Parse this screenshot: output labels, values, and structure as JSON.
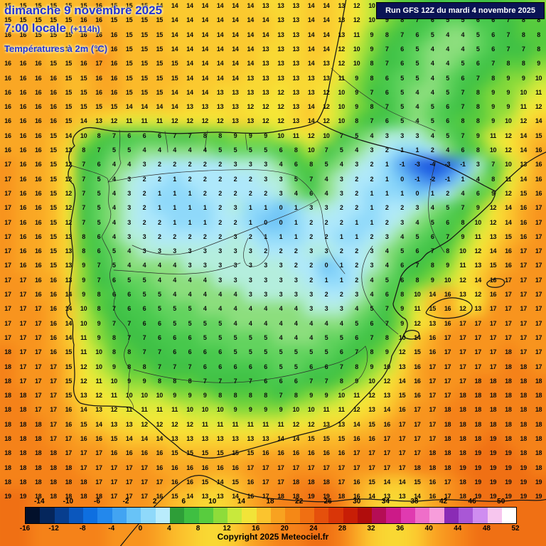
{
  "header": {
    "date_line": "dimanche 9 novembre 2025",
    "time_line": "7:00 locale",
    "offset_label": "(+114h)",
    "param_line": "Températures à 2m (°C)",
    "run_info": "Run GFS 12Z du mardi 4 novembre 2025"
  },
  "footer": {
    "copyright": "Copyright 2025 Meteociel.fr"
  },
  "colors": {
    "map_background": "#f5a623",
    "header_text": "#2333d6",
    "run_box_bg": "#0a1355",
    "run_box_text": "#ffffff",
    "number_text": "#0d0d0d"
  },
  "colorbar": {
    "top_labels": [
      "-14",
      "-10",
      "-6",
      "-2",
      "2",
      "6",
      "10",
      "14",
      "18",
      "22",
      "26",
      "30",
      "34",
      "38",
      "42",
      "46",
      "50"
    ],
    "bottom_labels": [
      "-16",
      "-12",
      "-8",
      "-4",
      "0",
      "4",
      "8",
      "12",
      "16",
      "20",
      "24",
      "28",
      "32",
      "36",
      "40",
      "44",
      "48",
      "52"
    ],
    "segment_colors": [
      "#02102b",
      "#05265c",
      "#083e8e",
      "#0b57bd",
      "#0e6fe0",
      "#2388ec",
      "#42a4f2",
      "#68c3f7",
      "#8fd9fa",
      "#b9ecfc",
      "#2e9e38",
      "#3fbf42",
      "#58cc3e",
      "#8edc3a",
      "#c8e93c",
      "#f2e438",
      "#fbc42e",
      "#f8a220",
      "#f58816",
      "#f06f12",
      "#e5500c",
      "#d93608",
      "#c81e06",
      "#b00d0c",
      "#b50d55",
      "#cc1a88",
      "#e03ab0",
      "#ef6ec9",
      "#f79ddb",
      "#8a2bb5",
      "#a957d6",
      "#cf8df0",
      "#f7c6ee",
      "#ffffff"
    ]
  },
  "chart_data": {
    "type": "heatmap",
    "title": "Températures à 2m (°C)",
    "unit": "°C",
    "model_run": "Run GFS 12Z du mardi 4 novembre 2025",
    "valid_time": "dimanche 9 novembre 2025 7:00 locale (+114h)",
    "grid_rows": 35,
    "grid_cols": 36,
    "palette_stops": [
      [
        -16,
        "#02102b"
      ],
      [
        -10,
        "#083e8e"
      ],
      [
        -6,
        "#0a36b4"
      ],
      [
        -4,
        "#0d47dd"
      ],
      [
        -2,
        "#2f76e8"
      ],
      [
        -1,
        "#4f9ef0"
      ],
      [
        0,
        "#6fc4f6"
      ],
      [
        1,
        "#8fd9fa"
      ],
      [
        2,
        "#aee8fb"
      ],
      [
        3,
        "#b4eedd"
      ],
      [
        4,
        "#8cde7d"
      ],
      [
        5,
        "#62d35e"
      ],
      [
        6,
        "#47c84c"
      ],
      [
        7,
        "#3ec045"
      ],
      [
        8,
        "#56cb3e"
      ],
      [
        9,
        "#86d93a"
      ],
      [
        10,
        "#c0e83c"
      ],
      [
        11,
        "#e6ea3a"
      ],
      [
        12,
        "#f6e636"
      ],
      [
        13,
        "#f9d833"
      ],
      [
        14,
        "#fbc92f"
      ],
      [
        15,
        "#fbba2a"
      ],
      [
        16,
        "#faa724"
      ],
      [
        17,
        "#f8941e"
      ],
      [
        18,
        "#f58219"
      ],
      [
        19,
        "#f07014"
      ],
      [
        20,
        "#ea5e10"
      ]
    ],
    "values": [
      [
        15,
        15,
        15,
        15,
        15,
        15,
        16,
        15,
        15,
        15,
        14,
        14,
        14,
        14,
        14,
        14,
        14,
        13,
        13,
        13,
        14,
        14,
        13,
        12,
        10,
        9,
        8,
        8,
        7,
        6,
        6,
        7,
        7,
        8,
        8,
        9
      ],
      [
        15,
        15,
        15,
        15,
        15,
        16,
        16,
        15,
        15,
        15,
        15,
        14,
        14,
        14,
        14,
        14,
        14,
        14,
        13,
        13,
        14,
        14,
        13,
        12,
        10,
        9,
        8,
        7,
        6,
        5,
        5,
        6,
        6,
        7,
        8,
        8
      ],
      [
        16,
        16,
        15,
        15,
        15,
        16,
        16,
        16,
        15,
        15,
        15,
        14,
        14,
        14,
        14,
        14,
        14,
        14,
        13,
        13,
        14,
        14,
        13,
        11,
        9,
        8,
        7,
        6,
        5,
        4,
        4,
        5,
        6,
        7,
        8,
        8
      ],
      [
        16,
        16,
        16,
        15,
        15,
        16,
        17,
        16,
        15,
        15,
        15,
        14,
        14,
        14,
        14,
        14,
        14,
        13,
        13,
        13,
        14,
        14,
        12,
        10,
        9,
        7,
        6,
        5,
        4,
        4,
        4,
        5,
        6,
        7,
        7,
        8
      ],
      [
        16,
        16,
        16,
        15,
        15,
        16,
        17,
        16,
        15,
        15,
        15,
        15,
        14,
        14,
        14,
        14,
        14,
        13,
        13,
        13,
        14,
        13,
        12,
        10,
        8,
        7,
        6,
        5,
        4,
        4,
        5,
        6,
        7,
        8,
        8,
        9
      ],
      [
        16,
        16,
        16,
        16,
        15,
        15,
        16,
        16,
        15,
        15,
        15,
        15,
        14,
        14,
        14,
        14,
        13,
        13,
        13,
        13,
        13,
        13,
        11,
        9,
        8,
        6,
        5,
        5,
        4,
        5,
        6,
        7,
        8,
        9,
        9,
        10
      ],
      [
        16,
        16,
        16,
        16,
        15,
        15,
        16,
        16,
        15,
        15,
        15,
        14,
        14,
        14,
        13,
        13,
        13,
        13,
        12,
        13,
        13,
        12,
        10,
        9,
        7,
        6,
        5,
        4,
        4,
        5,
        7,
        8,
        9,
        9,
        10,
        11
      ],
      [
        16,
        16,
        16,
        16,
        15,
        15,
        15,
        15,
        14,
        14,
        14,
        14,
        13,
        13,
        13,
        13,
        12,
        12,
        12,
        13,
        14,
        12,
        10,
        9,
        8,
        7,
        5,
        4,
        5,
        6,
        7,
        8,
        9,
        9,
        11,
        12
      ],
      [
        16,
        16,
        16,
        16,
        15,
        14,
        13,
        12,
        11,
        11,
        11,
        12,
        12,
        12,
        12,
        13,
        13,
        12,
        12,
        13,
        14,
        12,
        10,
        8,
        7,
        6,
        5,
        4,
        5,
        6,
        8,
        8,
        9,
        10,
        12,
        14
      ],
      [
        16,
        16,
        16,
        15,
        14,
        10,
        8,
        7,
        6,
        6,
        6,
        7,
        7,
        8,
        8,
        9,
        9,
        9,
        10,
        11,
        12,
        10,
        7,
        5,
        4,
        3,
        3,
        3,
        4,
        5,
        7,
        9,
        11,
        12,
        14,
        15
      ],
      [
        16,
        16,
        16,
        15,
        13,
        8,
        7,
        5,
        5,
        4,
        4,
        4,
        4,
        4,
        5,
        5,
        5,
        5,
        6,
        8,
        10,
        7,
        5,
        4,
        3,
        2,
        1,
        1,
        2,
        4,
        6,
        8,
        10,
        12,
        14,
        16
      ],
      [
        17,
        16,
        16,
        15,
        12,
        7,
        6,
        4,
        4,
        3,
        2,
        2,
        2,
        2,
        2,
        3,
        3,
        3,
        4,
        6,
        8,
        5,
        4,
        3,
        2,
        1,
        -1,
        -3,
        -4,
        -3,
        -1,
        3,
        7,
        10,
        13,
        16
      ],
      [
        17,
        16,
        16,
        15,
        12,
        7,
        5,
        4,
        3,
        2,
        2,
        1,
        2,
        2,
        2,
        2,
        2,
        3,
        3,
        5,
        7,
        4,
        3,
        2,
        2,
        1,
        0,
        -1,
        -2,
        -1,
        1,
        4,
        8,
        11,
        14,
        16
      ],
      [
        17,
        16,
        16,
        15,
        12,
        7,
        5,
        4,
        3,
        2,
        1,
        1,
        1,
        2,
        2,
        2,
        2,
        2,
        3,
        4,
        6,
        4,
        3,
        2,
        1,
        1,
        1,
        0,
        1,
        2,
        4,
        6,
        9,
        12,
        15,
        16
      ],
      [
        17,
        16,
        16,
        15,
        12,
        7,
        5,
        4,
        3,
        2,
        1,
        1,
        1,
        1,
        2,
        3,
        1,
        1,
        0,
        1,
        3,
        3,
        2,
        2,
        1,
        2,
        2,
        3,
        4,
        5,
        7,
        9,
        12,
        14,
        16,
        17
      ],
      [
        17,
        16,
        16,
        15,
        12,
        7,
        5,
        4,
        3,
        2,
        2,
        1,
        1,
        1,
        2,
        2,
        1,
        0,
        0,
        1,
        2,
        2,
        2,
        1,
        1,
        2,
        3,
        4,
        5,
        6,
        8,
        10,
        12,
        14,
        16,
        17
      ],
      [
        17,
        16,
        16,
        15,
        13,
        8,
        6,
        4,
        3,
        3,
        2,
        2,
        2,
        2,
        2,
        3,
        2,
        1,
        1,
        1,
        2,
        2,
        1,
        1,
        2,
        3,
        4,
        5,
        6,
        7,
        9,
        11,
        13,
        15,
        16,
        17
      ],
      [
        17,
        16,
        16,
        15,
        13,
        8,
        6,
        5,
        4,
        3,
        3,
        3,
        3,
        3,
        3,
        3,
        3,
        2,
        2,
        2,
        3,
        3,
        2,
        2,
        3,
        4,
        5,
        6,
        7,
        8,
        10,
        12,
        14,
        16,
        17,
        17
      ],
      [
        17,
        16,
        16,
        15,
        13,
        9,
        7,
        5,
        4,
        4,
        4,
        4,
        3,
        3,
        3,
        3,
        3,
        3,
        3,
        2,
        2,
        0,
        1,
        2,
        3,
        4,
        6,
        7,
        8,
        9,
        11,
        13,
        15,
        16,
        17,
        17
      ],
      [
        17,
        17,
        16,
        16,
        13,
        9,
        7,
        6,
        5,
        5,
        4,
        4,
        4,
        4,
        3,
        3,
        3,
        3,
        3,
        3,
        2,
        1,
        1,
        2,
        4,
        5,
        6,
        8,
        9,
        10,
        12,
        14,
        16,
        17,
        17,
        17
      ],
      [
        17,
        17,
        16,
        16,
        14,
        9,
        8,
        6,
        6,
        5,
        5,
        4,
        4,
        4,
        4,
        4,
        3,
        3,
        3,
        3,
        3,
        2,
        2,
        3,
        4,
        6,
        8,
        10,
        14,
        16,
        13,
        12,
        16,
        17,
        17,
        17
      ],
      [
        17,
        17,
        17,
        16,
        14,
        10,
        8,
        7,
        6,
        6,
        5,
        5,
        5,
        4,
        4,
        4,
        4,
        4,
        4,
        4,
        3,
        3,
        3,
        4,
        5,
        7,
        9,
        11,
        15,
        16,
        12,
        13,
        17,
        17,
        17,
        17
      ],
      [
        17,
        17,
        17,
        16,
        14,
        10,
        9,
        7,
        7,
        6,
        6,
        5,
        5,
        5,
        5,
        4,
        4,
        4,
        4,
        4,
        4,
        4,
        4,
        5,
        6,
        7,
        9,
        12,
        13,
        16,
        17,
        17,
        17,
        17,
        17,
        17
      ],
      [
        17,
        17,
        17,
        16,
        14,
        11,
        9,
        8,
        7,
        7,
        6,
        6,
        6,
        5,
        5,
        5,
        5,
        5,
        4,
        4,
        4,
        5,
        5,
        6,
        7,
        8,
        10,
        14,
        16,
        17,
        17,
        17,
        17,
        17,
        17,
        17
      ],
      [
        18,
        17,
        17,
        16,
        15,
        11,
        10,
        8,
        8,
        7,
        7,
        6,
        6,
        6,
        6,
        5,
        5,
        5,
        5,
        5,
        5,
        5,
        6,
        7,
        8,
        9,
        12,
        15,
        16,
        17,
        17,
        17,
        17,
        18,
        17,
        17
      ],
      [
        18,
        17,
        17,
        17,
        15,
        12,
        10,
        9,
        8,
        8,
        7,
        7,
        7,
        6,
        6,
        6,
        6,
        6,
        5,
        5,
        6,
        6,
        7,
        8,
        9,
        10,
        13,
        16,
        17,
        17,
        17,
        17,
        17,
        18,
        18,
        17
      ],
      [
        18,
        17,
        17,
        17,
        15,
        12,
        11,
        10,
        9,
        9,
        8,
        8,
        8,
        7,
        7,
        7,
        7,
        6,
        6,
        6,
        7,
        7,
        8,
        9,
        10,
        12,
        14,
        16,
        17,
        17,
        17,
        18,
        18,
        18,
        18,
        18
      ],
      [
        18,
        18,
        17,
        17,
        15,
        13,
        12,
        11,
        10,
        10,
        10,
        9,
        9,
        9,
        8,
        8,
        8,
        8,
        7,
        8,
        9,
        9,
        10,
        11,
        12,
        13,
        15,
        16,
        17,
        17,
        18,
        18,
        18,
        18,
        18,
        18
      ],
      [
        18,
        18,
        17,
        17,
        16,
        14,
        13,
        12,
        11,
        11,
        11,
        11,
        10,
        10,
        10,
        9,
        9,
        9,
        9,
        10,
        10,
        11,
        11,
        12,
        13,
        14,
        16,
        17,
        17,
        18,
        18,
        18,
        18,
        18,
        18,
        18
      ],
      [
        18,
        18,
        18,
        17,
        16,
        15,
        14,
        13,
        13,
        12,
        12,
        12,
        12,
        11,
        11,
        11,
        11,
        11,
        11,
        12,
        12,
        13,
        13,
        14,
        15,
        16,
        17,
        17,
        17,
        18,
        18,
        18,
        18,
        18,
        18,
        18
      ],
      [
        18,
        18,
        18,
        17,
        17,
        16,
        16,
        15,
        14,
        14,
        14,
        13,
        13,
        13,
        13,
        13,
        13,
        13,
        14,
        14,
        15,
        15,
        15,
        16,
        16,
        17,
        17,
        17,
        17,
        18,
        18,
        18,
        19,
        18,
        18,
        18
      ],
      [
        18,
        18,
        18,
        18,
        17,
        17,
        17,
        16,
        16,
        16,
        16,
        15,
        15,
        15,
        15,
        15,
        15,
        16,
        16,
        16,
        16,
        16,
        16,
        17,
        17,
        17,
        17,
        17,
        18,
        18,
        18,
        19,
        19,
        19,
        18,
        18
      ],
      [
        18,
        18,
        18,
        18,
        18,
        17,
        17,
        17,
        17,
        17,
        16,
        16,
        16,
        16,
        16,
        16,
        17,
        17,
        17,
        17,
        17,
        17,
        17,
        17,
        17,
        17,
        17,
        18,
        18,
        18,
        19,
        19,
        19,
        19,
        19,
        18
      ],
      [
        18,
        18,
        18,
        18,
        18,
        18,
        17,
        17,
        17,
        17,
        17,
        16,
        16,
        15,
        14,
        15,
        16,
        17,
        17,
        18,
        18,
        18,
        17,
        16,
        15,
        14,
        14,
        15,
        16,
        17,
        18,
        19,
        19,
        19,
        19,
        19
      ],
      [
        19,
        19,
        18,
        18,
        18,
        18,
        18,
        17,
        17,
        17,
        16,
        15,
        14,
        13,
        13,
        14,
        16,
        17,
        18,
        18,
        19,
        19,
        18,
        16,
        14,
        13,
        13,
        14,
        16,
        17,
        18,
        19,
        19,
        19,
        19,
        19
      ]
    ]
  }
}
